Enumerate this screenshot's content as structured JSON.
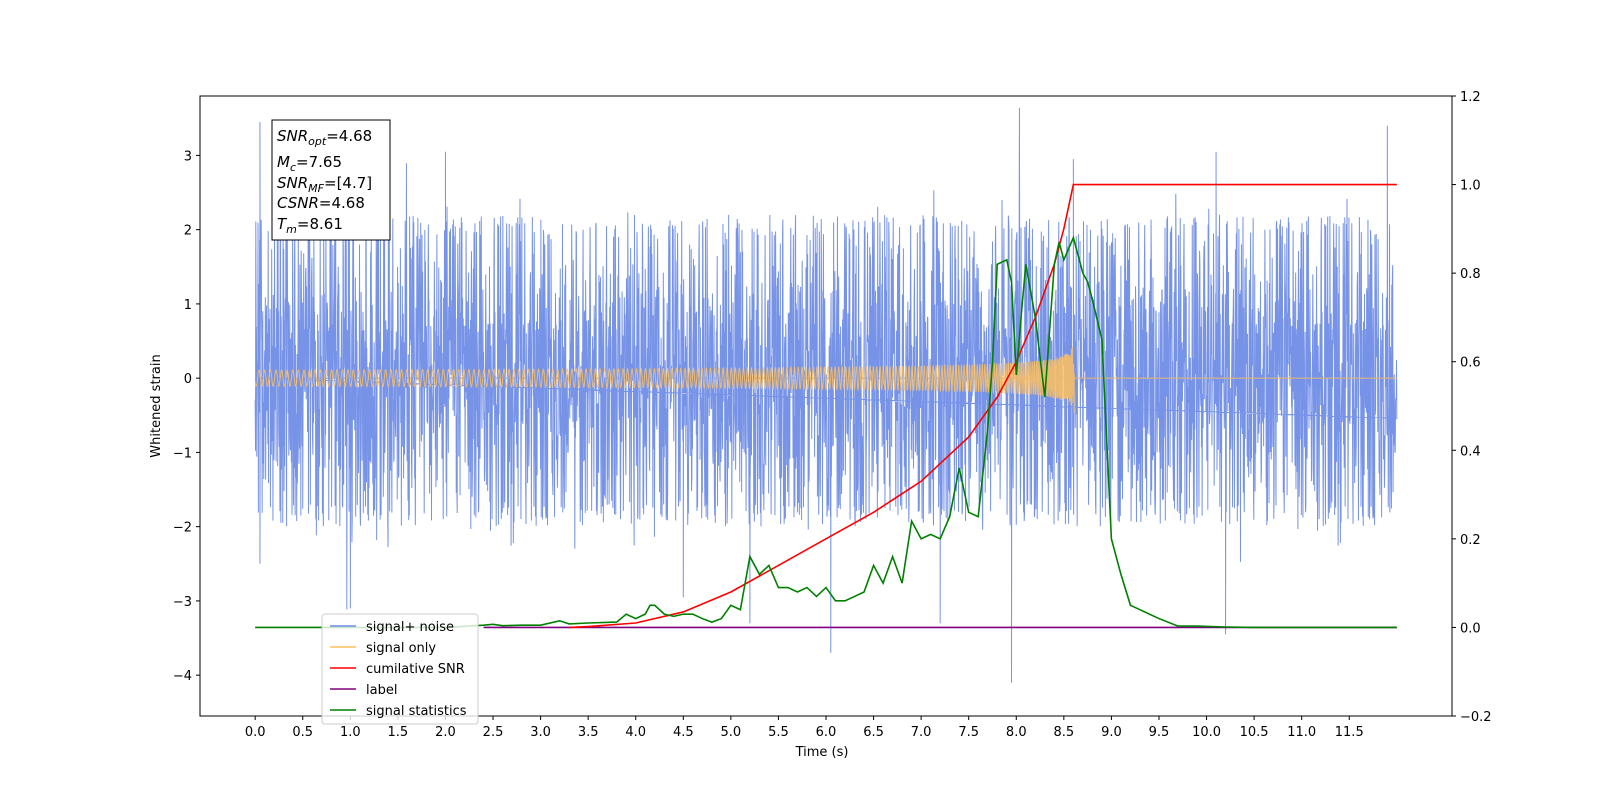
{
  "chart_data": {
    "type": "line",
    "xlabel": "Time (s)",
    "ylabel": "Whitened strain",
    "xlim": [
      -0.58,
      12.58
    ],
    "ylim": [
      -4.55,
      3.8
    ],
    "y2lim": [
      -0.2,
      1.2
    ],
    "x_ticks": [
      0.0,
      0.5,
      1.0,
      1.5,
      2.0,
      2.5,
      3.0,
      3.5,
      4.0,
      4.5,
      5.0,
      5.5,
      6.0,
      6.5,
      7.0,
      7.5,
      8.0,
      8.5,
      9.0,
      9.5,
      10.0,
      10.5,
      11.0,
      11.5
    ],
    "x_tick_labels": [
      "0.0",
      "0.5",
      "1.0",
      "1.5",
      "2.0",
      "2.5",
      "3.0",
      "3.5",
      "4.0",
      "4.5",
      "5.0",
      "5.5",
      "6.0",
      "6.5",
      "7.0",
      "7.5",
      "8.0",
      "8.5",
      "9.0",
      "9.5",
      "10.0",
      "10.5",
      "11.0",
      "11.5"
    ],
    "y_ticks": [
      -4,
      -3,
      -2,
      -1,
      0,
      1,
      2,
      3
    ],
    "y_tick_labels": [
      "−4",
      "−3",
      "−2",
      "−1",
      "0",
      "1",
      "2",
      "3"
    ],
    "y2_ticks": [
      -0.2,
      0.0,
      0.2,
      0.4,
      0.6,
      0.8,
      1.0,
      1.2
    ],
    "y2_tick_labels": [
      "−0.2",
      "0.0",
      "0.2",
      "0.4",
      "0.6",
      "0.8",
      "1.0",
      "1.2"
    ],
    "legend": {
      "placement": "lower-left",
      "entries": [
        {
          "label": "signal+ noise",
          "color": "#6f8de6"
        },
        {
          "label": "signal only",
          "color": "#ffbf5f"
        },
        {
          "label": "cumilative SNR",
          "color": "#ff0000"
        },
        {
          "label": "label",
          "color": "#800080"
        },
        {
          "label": "signal statistics",
          "color": "#008000"
        }
      ]
    },
    "info_box": {
      "snr_opt_base": "SNR",
      "snr_opt_sub": "opt",
      "snr_opt_value": "=4.68",
      "mc_base": "M",
      "mc_sub": "c",
      "mc_value": "=7.65",
      "snr_mf_base": "SNR",
      "snr_mf_sub": "MF",
      "snr_mf_value": "=[4.7]",
      "csnr_base": "CSNR",
      "csnr_value": "=4.68",
      "tm_base": "T",
      "tm_sub": "m",
      "tm_value": "=8.61"
    },
    "series": [
      {
        "name": "signal+ noise",
        "axis": "left",
        "color": "#6f8de6",
        "x_range": [
          0.0,
          12.0
        ],
        "noise_band": [
          -2.0,
          2.2
        ],
        "noise_sigma": 1.0,
        "outliers": [
          [
            0.05,
            3.45
          ],
          [
            11.9,
            3.4
          ],
          [
            10.1,
            3.05
          ],
          [
            7.95,
            -4.1
          ],
          [
            6.05,
            -3.7
          ],
          [
            10.2,
            -3.45
          ],
          [
            1.0,
            -3.1
          ],
          [
            5.2,
            -3.3
          ],
          [
            7.2,
            -3.3
          ],
          [
            8.6,
            2.95
          ],
          [
            0.05,
            -2.5
          ],
          [
            2.0,
            3.05
          ],
          [
            4.5,
            -2.95
          ]
        ]
      },
      {
        "name": "signal only",
        "axis": "left",
        "color": "#ffbf5f",
        "chirp_end": 8.61,
        "chirp_amplitude_end": 0.5,
        "x_range": [
          0.0,
          12.0
        ]
      },
      {
        "name": "cumilative SNR",
        "axis": "right",
        "color": "#ff0000",
        "x": [
          3.3,
          3.5,
          4.0,
          4.5,
          5.0,
          5.5,
          6.0,
          6.5,
          7.0,
          7.5,
          7.8,
          8.0,
          8.2,
          8.4,
          8.5,
          8.55,
          8.6,
          8.61,
          12.0
        ],
        "y": [
          0.0,
          0.002,
          0.01,
          0.035,
          0.08,
          0.14,
          0.2,
          0.26,
          0.33,
          0.43,
          0.52,
          0.6,
          0.7,
          0.82,
          0.9,
          0.95,
          1.0,
          1.0,
          1.0
        ]
      },
      {
        "name": "label",
        "axis": "right",
        "color": "#800080",
        "x": [
          2.4,
          12.0
        ],
        "y": [
          0.0,
          0.0
        ]
      },
      {
        "name": "signal statistics",
        "axis": "right",
        "color": "#008000",
        "x": [
          0.0,
          2.0,
          2.4,
          2.5,
          2.6,
          2.8,
          3.0,
          3.2,
          3.3,
          3.5,
          3.8,
          3.9,
          4.0,
          4.1,
          4.15,
          4.2,
          4.3,
          4.4,
          4.5,
          4.6,
          4.7,
          4.8,
          4.9,
          5.0,
          5.1,
          5.2,
          5.3,
          5.4,
          5.5,
          5.6,
          5.7,
          5.8,
          5.9,
          6.0,
          6.1,
          6.2,
          6.3,
          6.4,
          6.5,
          6.6,
          6.7,
          6.8,
          6.9,
          7.0,
          7.1,
          7.2,
          7.3,
          7.4,
          7.5,
          7.6,
          7.7,
          7.75,
          7.8,
          7.9,
          7.95,
          8.0,
          8.05,
          8.1,
          8.2,
          8.3,
          8.4,
          8.45,
          8.5,
          8.6,
          8.7,
          8.75,
          8.8,
          8.9,
          9.0,
          9.1,
          9.2,
          9.3,
          9.5,
          9.7,
          9.9,
          10.2,
          10.5,
          12.0
        ],
        "y": [
          0.0,
          0.0,
          0.005,
          0.007,
          0.004,
          0.005,
          0.005,
          0.015,
          0.008,
          0.01,
          0.012,
          0.03,
          0.02,
          0.03,
          0.05,
          0.05,
          0.03,
          0.025,
          0.03,
          0.03,
          0.02,
          0.012,
          0.02,
          0.05,
          0.04,
          0.16,
          0.12,
          0.14,
          0.09,
          0.09,
          0.08,
          0.09,
          0.07,
          0.09,
          0.06,
          0.06,
          0.07,
          0.08,
          0.14,
          0.1,
          0.16,
          0.1,
          0.24,
          0.2,
          0.21,
          0.2,
          0.25,
          0.36,
          0.26,
          0.25,
          0.45,
          0.6,
          0.82,
          0.83,
          0.78,
          0.57,
          0.7,
          0.82,
          0.7,
          0.52,
          0.82,
          0.87,
          0.83,
          0.88,
          0.8,
          0.78,
          0.74,
          0.65,
          0.2,
          0.12,
          0.05,
          0.04,
          0.02,
          0.003,
          0.003,
          0.001,
          0.0,
          0.0
        ]
      }
    ]
  }
}
